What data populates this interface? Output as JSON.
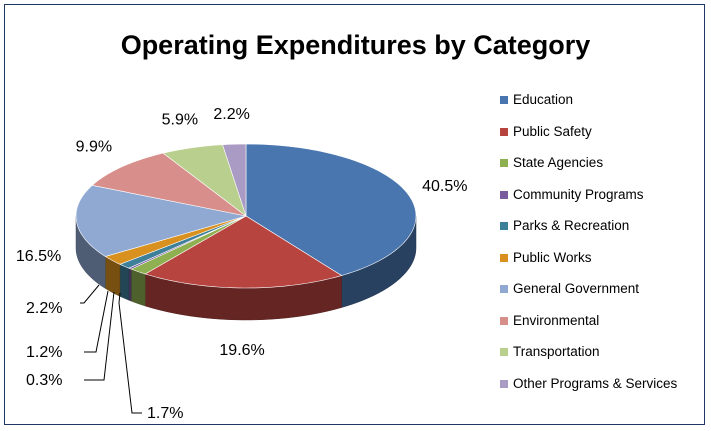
{
  "chart_data": {
    "type": "pie",
    "title": "Operating Expenditures by Category",
    "categories": [
      "Education",
      "Public Safety",
      "State Agencies",
      "Community Programs",
      "Parks & Recreation",
      "Public Works",
      "General Government",
      "Environmental",
      "Transportation",
      "Other Programs & Services"
    ],
    "values": [
      40.5,
      19.6,
      1.7,
      0.3,
      1.2,
      2.2,
      16.5,
      9.9,
      5.9,
      2.2
    ],
    "value_labels": [
      "40.5%",
      "19.6%",
      "1.7%",
      "0.3%",
      "1.2%",
      "2.2%",
      "16.5%",
      "9.9%",
      "5.9%",
      "2.2%"
    ],
    "colors": [
      "#4a76b0",
      "#b84440",
      "#8eb051",
      "#7a5a9e",
      "#3e7f9a",
      "#d8901e",
      "#8fa9d2",
      "#d88f8c",
      "#b9cf8e",
      "#a99bc3"
    ],
    "legend_position": "right",
    "style": "3d-pie"
  }
}
